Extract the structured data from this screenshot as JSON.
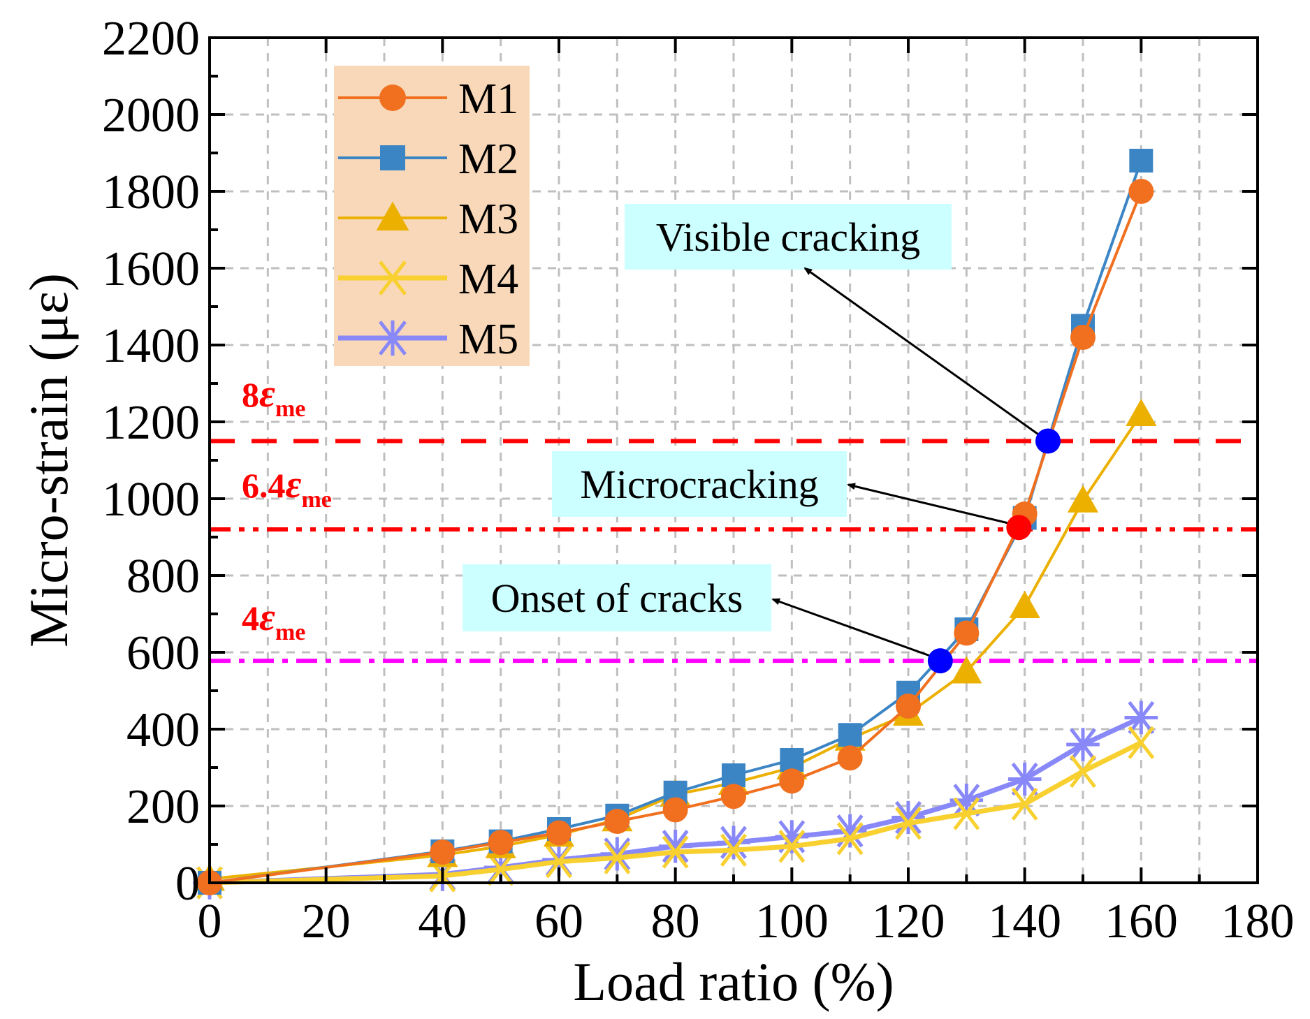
{
  "chart_data": {
    "type": "line",
    "title": "",
    "xlabel": "Load ratio (%)",
    "ylabel": "Micro-strain (με)",
    "xlim": [
      0,
      180
    ],
    "ylim": [
      0,
      2200
    ],
    "xticks": [
      0,
      20,
      40,
      60,
      80,
      100,
      120,
      140,
      160,
      180
    ],
    "yticks": [
      0,
      200,
      400,
      600,
      800,
      1000,
      1200,
      1400,
      1600,
      1800,
      2000,
      2200
    ],
    "grid": true,
    "legend_position": "top-left",
    "x": [
      0,
      40,
      50,
      60,
      70,
      80,
      90,
      100,
      110,
      120,
      130,
      140,
      150,
      160
    ],
    "series": [
      {
        "name": "M1",
        "color": "#F07020",
        "marker": "circle",
        "values": [
          0,
          80,
          105,
          130,
          160,
          190,
          225,
          265,
          325,
          460,
          650,
          960,
          1420,
          1800
        ]
      },
      {
        "name": "M2",
        "color": "#3C85C5",
        "marker": "square",
        "values": [
          0,
          82,
          108,
          140,
          175,
          235,
          280,
          320,
          385,
          495,
          660,
          950,
          1450,
          1880
        ]
      },
      {
        "name": "M3",
        "color": "#EBB000",
        "marker": "triangle",
        "values": [
          10,
          72,
          95,
          125,
          165,
          230,
          260,
          300,
          375,
          440,
          550,
          720,
          995,
          1220
        ]
      },
      {
        "name": "M4",
        "color": "#F8D030",
        "marker": "x",
        "values": [
          0,
          18,
          35,
          55,
          65,
          80,
          85,
          95,
          115,
          155,
          180,
          205,
          290,
          365
        ]
      },
      {
        "name": "M5",
        "color": "#8888F8",
        "marker": "asterisk",
        "values": [
          0,
          22,
          40,
          60,
          75,
          95,
          105,
          120,
          135,
          170,
          215,
          270,
          360,
          430
        ]
      }
    ],
    "reference_lines": [
      {
        "label_main": "8",
        "label_symbol": "ε",
        "label_sub": "me",
        "value": 1150,
        "color": "#FF0000",
        "style": "dash"
      },
      {
        "label_main": "6.4",
        "label_symbol": "ε",
        "label_sub": "me",
        "value": 920,
        "color": "#FF0000",
        "style": "dash-dot-dot"
      },
      {
        "label_main": "4",
        "label_symbol": "ε",
        "label_sub": "me",
        "value": 578,
        "color": "#FF00FF",
        "style": "dash-dot"
      }
    ],
    "annotations": [
      {
        "text": "Visible cracking",
        "x": 144,
        "y": 1150,
        "point_color": "#0000FF"
      },
      {
        "text": "Microcracking",
        "x": 139,
        "y": 925,
        "point_color": "#FF0000"
      },
      {
        "text": "Onset of cracks",
        "x": 125.5,
        "y": 578,
        "point_color": "#0000FF"
      }
    ],
    "colors": {
      "legend_bg": "#F8D8B8",
      "annotation_bg": "#CCFFFF",
      "grid": "#BFBFBF"
    }
  }
}
